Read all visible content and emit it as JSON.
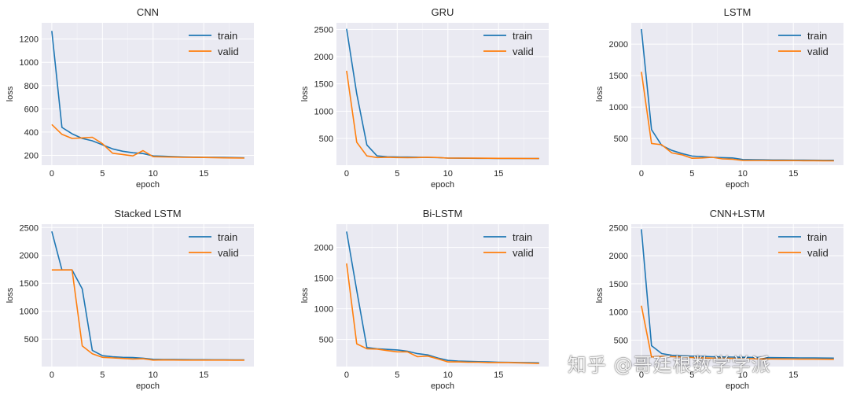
{
  "colors": {
    "train": "#1f77b4",
    "valid": "#ff7f0e",
    "panel_bg": "#eaeaf2",
    "grid": "#ffffff",
    "text": "#262626"
  },
  "watermark": "知乎 @哥廷根数学学派",
  "chart_data": [
    {
      "type": "line",
      "title": "CNN",
      "xlabel": "epoch",
      "ylabel": "loss",
      "xlim": [
        -1,
        19.95
      ],
      "ylim": [
        115,
        1340
      ],
      "xticks": [
        0,
        5,
        10,
        15
      ],
      "yticks": [
        200,
        400,
        600,
        800,
        1000,
        1200
      ],
      "grid": true,
      "legend": "upper right",
      "x": [
        0,
        1,
        2,
        3,
        4,
        5,
        6,
        7,
        8,
        9,
        10,
        11,
        12,
        13,
        14,
        15,
        16,
        17,
        18,
        19
      ],
      "series": [
        {
          "name": "train",
          "values": [
            1270,
            440,
            385,
            345,
            325,
            290,
            255,
            235,
            222,
            215,
            195,
            192,
            189,
            186,
            184,
            183,
            182,
            181,
            180,
            178
          ]
        },
        {
          "name": "valid",
          "values": [
            465,
            380,
            345,
            350,
            355,
            300,
            218,
            207,
            195,
            240,
            188,
            186,
            185,
            183,
            182,
            181,
            180,
            178,
            177,
            176
          ]
        }
      ]
    },
    {
      "type": "line",
      "title": "GRU",
      "xlabel": "epoch",
      "ylabel": "loss",
      "xlim": [
        -1,
        19.95
      ],
      "ylim": [
        10,
        2620
      ],
      "xticks": [
        0,
        5,
        10,
        15
      ],
      "yticks": [
        500,
        1000,
        1500,
        2000,
        2500
      ],
      "grid": true,
      "legend": "upper right",
      "x": [
        0,
        1,
        2,
        3,
        4,
        5,
        6,
        7,
        8,
        9,
        10,
        11,
        12,
        13,
        14,
        15,
        16,
        17,
        18,
        19
      ],
      "series": [
        {
          "name": "train",
          "values": [
            2510,
            1320,
            380,
            180,
            165,
            160,
            158,
            155,
            152,
            150,
            140,
            138,
            137,
            136,
            135,
            134,
            133,
            133,
            132,
            131
          ]
        },
        {
          "name": "valid",
          "values": [
            1740,
            430,
            180,
            150,
            155,
            150,
            148,
            150,
            155,
            150,
            140,
            140,
            139,
            138,
            137,
            136,
            135,
            134,
            133,
            132
          ]
        }
      ]
    },
    {
      "type": "line",
      "title": "LSTM",
      "xlabel": "epoch",
      "ylabel": "loss",
      "xlim": [
        -1,
        19.95
      ],
      "ylim": [
        75,
        2340
      ],
      "xticks": [
        0,
        5,
        10,
        15
      ],
      "yticks": [
        500,
        1000,
        1500,
        2000
      ],
      "grid": true,
      "legend": "upper right",
      "x": [
        0,
        1,
        2,
        3,
        4,
        5,
        6,
        7,
        8,
        9,
        10,
        11,
        12,
        13,
        14,
        15,
        16,
        17,
        18,
        19
      ],
      "series": [
        {
          "name": "train",
          "values": [
            2240,
            640,
            390,
            310,
            260,
            220,
            210,
            200,
            195,
            190,
            165,
            162,
            160,
            158,
            157,
            156,
            155,
            154,
            153,
            152
          ]
        },
        {
          "name": "valid",
          "values": [
            1560,
            420,
            400,
            270,
            240,
            185,
            190,
            200,
            175,
            170,
            150,
            150,
            150,
            148,
            148,
            147,
            146,
            146,
            145,
            144
          ]
        }
      ]
    },
    {
      "type": "line",
      "title": "Stacked LSTM",
      "xlabel": "epoch",
      "ylabel": "loss",
      "xlim": [
        -1,
        19.95
      ],
      "ylim": [
        10,
        2560
      ],
      "xticks": [
        0,
        5,
        10,
        15
      ],
      "yticks": [
        500,
        1000,
        1500,
        2000,
        2500
      ],
      "grid": true,
      "legend": "upper right",
      "x": [
        0,
        1,
        2,
        3,
        4,
        5,
        6,
        7,
        8,
        9,
        10,
        11,
        12,
        13,
        14,
        15,
        16,
        17,
        18,
        19
      ],
      "series": [
        {
          "name": "train",
          "values": [
            2430,
            1740,
            1740,
            1400,
            300,
            205,
            185,
            175,
            170,
            160,
            140,
            137,
            135,
            134,
            133,
            132,
            131,
            131,
            130,
            130
          ]
        },
        {
          "name": "valid",
          "values": [
            1740,
            1740,
            1740,
            380,
            240,
            175,
            165,
            155,
            145,
            150,
            125,
            128,
            127,
            126,
            126,
            125,
            125,
            125,
            124,
            124
          ]
        }
      ]
    },
    {
      "type": "line",
      "title": "Bi-LSTM",
      "xlabel": "epoch",
      "ylabel": "loss",
      "xlim": [
        -1,
        19.95
      ],
      "ylim": [
        60,
        2380
      ],
      "xticks": [
        0,
        5,
        10,
        15
      ],
      "yticks": [
        500,
        1000,
        1500,
        2000
      ],
      "grid": true,
      "legend": "upper right",
      "x": [
        0,
        1,
        2,
        3,
        4,
        5,
        6,
        7,
        8,
        9,
        10,
        11,
        12,
        13,
        14,
        15,
        16,
        17,
        18,
        19
      ],
      "series": [
        {
          "name": "train",
          "values": [
            2260,
            1300,
            370,
            350,
            340,
            330,
            310,
            270,
            250,
            200,
            160,
            150,
            145,
            140,
            135,
            130,
            128,
            125,
            123,
            120
          ]
        },
        {
          "name": "valid",
          "values": [
            1740,
            430,
            350,
            345,
            320,
            300,
            300,
            220,
            230,
            185,
            135,
            135,
            130,
            130,
            125,
            125,
            125,
            120,
            115,
            110
          ]
        }
      ]
    },
    {
      "type": "line",
      "title": "CNN+LSTM",
      "xlabel": "epoch",
      "ylabel": "loss",
      "xlim": [
        -1,
        19.95
      ],
      "ylim": [
        30,
        2560
      ],
      "xticks": [
        0,
        5,
        10,
        15
      ],
      "yticks": [
        500,
        1000,
        1500,
        2000,
        2500
      ],
      "grid": true,
      "legend": "upper right",
      "x": [
        0,
        1,
        2,
        3,
        4,
        5,
        6,
        7,
        8,
        9,
        10,
        11,
        12,
        13,
        14,
        15,
        16,
        17,
        18,
        19
      ],
      "series": [
        {
          "name": "train",
          "values": [
            2470,
            400,
            260,
            230,
            220,
            215,
            210,
            205,
            200,
            198,
            195,
            192,
            190,
            188,
            186,
            185,
            183,
            182,
            181,
            180
          ]
        },
        {
          "name": "valid",
          "values": [
            1110,
            200,
            210,
            205,
            200,
            190,
            185,
            180,
            178,
            175,
            170,
            168,
            166,
            165,
            164,
            163,
            162,
            161,
            160,
            158
          ]
        }
      ]
    }
  ]
}
